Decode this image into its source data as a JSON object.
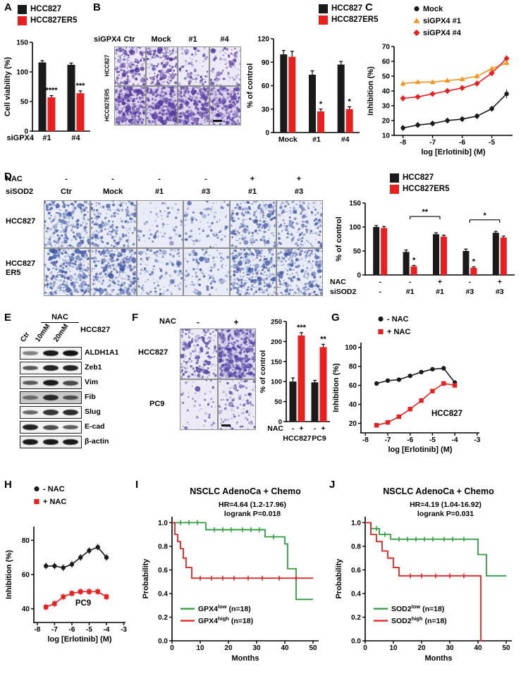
{
  "panelA": {
    "label": "A",
    "legend": [
      {
        "label": "HCC827",
        "color": "#1a1a1a"
      },
      {
        "label": "HCC827ER5",
        "color": "#e8201f"
      }
    ],
    "chart_data": {
      "type": "bar",
      "ylabel": "Cell viability (%)",
      "ylim": [
        0,
        150
      ],
      "yticks": [
        0,
        50,
        100,
        150
      ],
      "xprefix": "siGPX4",
      "categories": [
        "#1",
        "#4"
      ],
      "series": [
        {
          "name": "HCC827",
          "color": "#1a1a1a",
          "values": [
            116,
            112
          ],
          "errors": [
            3,
            3
          ]
        },
        {
          "name": "HCC827ER5",
          "color": "#e8201f",
          "values": [
            57,
            64
          ],
          "errors": [
            3,
            4
          ]
        }
      ],
      "annotations": [
        {
          "group": 0,
          "series": 1,
          "text": "****"
        },
        {
          "group": 1,
          "series": 1,
          "text": "***"
        }
      ]
    }
  },
  "panelB": {
    "label": "B",
    "grid": {
      "corner_label": "siGPX4",
      "col_labels": [
        "Ctr",
        "Mock",
        "#1",
        "#4"
      ],
      "row_labels": [
        "HCC827",
        "HCC827ER5"
      ],
      "densities": [
        [
          0.72,
          0.68,
          0.33,
          0.38
        ],
        [
          0.95,
          0.93,
          0.85,
          0.8
        ]
      ],
      "dot_color": "#53379c",
      "bg": "#ede9f6"
    },
    "legend": [
      {
        "label": "HCC827",
        "color": "#1a1a1a"
      },
      {
        "label": "HCC827ER5",
        "color": "#e8201f"
      }
    ],
    "chart_data": {
      "type": "bar",
      "ylabel": "% of control",
      "ylim": [
        0,
        120
      ],
      "yticks": [
        0,
        30,
        60,
        90,
        120
      ],
      "categories": [
        "Mock",
        "#1",
        "#4"
      ],
      "series": [
        {
          "name": "HCC827",
          "color": "#1a1a1a",
          "values": [
            100,
            74,
            87
          ],
          "errors": [
            5,
            5,
            4
          ]
        },
        {
          "name": "HCC827ER5",
          "color": "#e8201f",
          "values": [
            97,
            27,
            30
          ],
          "errors": [
            7,
            3,
            3
          ]
        }
      ],
      "annotations": [
        {
          "group": 1,
          "series": 1,
          "text": "*"
        },
        {
          "group": 2,
          "series": 1,
          "text": "*"
        }
      ]
    }
  },
  "panelC": {
    "label": "C",
    "chart_data": {
      "type": "line",
      "ylabel": "Inhibition (%)",
      "xlabel": "log [Erlotinib] (M)",
      "ylim": [
        10,
        70
      ],
      "yticks": [
        10,
        20,
        30,
        40,
        50,
        60,
        70
      ],
      "xlim": [
        -8.3,
        -4.3
      ],
      "xticks": [
        -8,
        -7,
        -6,
        -5
      ],
      "series": [
        {
          "name": "Mock",
          "color": "#1a1a1a",
          "marker": "circle",
          "x": [
            -8,
            -7.5,
            -7,
            -6.5,
            -6,
            -5.5,
            -5,
            -4.5
          ],
          "y": [
            15,
            17,
            18,
            20,
            21,
            23,
            28,
            38
          ],
          "yerr": [
            2,
            2,
            2,
            2,
            2,
            2,
            2,
            3
          ]
        },
        {
          "name": "siGPX4 #1",
          "color": "#f59420",
          "marker": "triangle",
          "x": [
            -8,
            -7.5,
            -7,
            -6.5,
            -6,
            -5.5,
            -5,
            -4.5
          ],
          "y": [
            45,
            46,
            46,
            47,
            48,
            50,
            55,
            59
          ],
          "yerr": [
            2,
            1,
            1,
            1,
            1,
            2,
            2,
            2
          ]
        },
        {
          "name": "siGPX4 #4",
          "color": "#e8201f",
          "marker": "diamond",
          "x": [
            -8,
            -7.5,
            -7,
            -6.5,
            -6,
            -5.5,
            -5,
            -4.5
          ],
          "y": [
            35,
            36,
            38,
            40,
            42,
            45,
            52,
            62
          ],
          "yerr": [
            2,
            1,
            1,
            1,
            2,
            2,
            2,
            2
          ]
        }
      ]
    }
  },
  "panelD": {
    "label": "D",
    "grid": {
      "header_rows": [
        {
          "label": "NAC",
          "values": [
            "-",
            "-",
            "-",
            "-",
            "+",
            "+"
          ]
        },
        {
          "label": "siSOD2",
          "values": [
            "Ctr",
            "Mock",
            "#1",
            "#3",
            "#1",
            "#3"
          ]
        }
      ],
      "row_labels": [
        [
          "HCC827"
        ],
        [
          "HCC827",
          "ER5"
        ]
      ],
      "densities": [
        [
          0.5,
          0.45,
          0.17,
          0.2,
          0.45,
          0.4
        ],
        [
          0.68,
          0.63,
          0.3,
          0.25,
          0.6,
          0.55
        ]
      ],
      "dot_color": "#3d55a3",
      "bg": "#e9ecf6"
    },
    "legend": [
      {
        "label": "HCC827",
        "color": "#1a1a1a"
      },
      {
        "label": "HCC827ER5",
        "color": "#e8201f"
      }
    ],
    "chart_data": {
      "type": "bar",
      "ylabel": "% of control",
      "ylim": [
        0,
        150
      ],
      "yticks": [
        0,
        50,
        100,
        150
      ],
      "categories": [
        "",
        "",
        "",
        "",
        ""
      ],
      "series": [
        {
          "name": "HCC827",
          "color": "#1a1a1a",
          "values": [
            100,
            48,
            85,
            50,
            88
          ],
          "errors": [
            3,
            4,
            3,
            4,
            3
          ]
        },
        {
          "name": "HCC827ER5",
          "color": "#e8201f",
          "values": [
            98,
            18,
            80,
            15,
            78
          ],
          "errors": [
            3,
            2,
            3,
            2,
            3
          ]
        }
      ],
      "annotations": [
        {
          "group": 1,
          "series": 1,
          "text": "*"
        },
        {
          "group": 3,
          "series": 1,
          "text": "*"
        }
      ],
      "brackets": [
        {
          "from": 1,
          "to": 2,
          "y": 122,
          "text": "**"
        },
        {
          "from": 3,
          "to": 4,
          "y": 115,
          "text": "*"
        }
      ],
      "xrows": [
        {
          "label": "NAC",
          "values": [
            "-",
            "-",
            "+",
            "-",
            "+"
          ]
        },
        {
          "label": "siSOD2",
          "values": [
            "-",
            "#1",
            "#1",
            "#3",
            "#3"
          ]
        }
      ]
    }
  },
  "panelE": {
    "label": "E",
    "treatment_label": "NAC",
    "cell_line": "HCC827",
    "lane_labels": [
      "Ctr",
      "10mM",
      "20mM"
    ],
    "blot_rows": [
      {
        "label": "ALDH1A1",
        "bg": "#f3f3f3",
        "bands": [
          0.3,
          0.9,
          0.95
        ]
      },
      {
        "label": "Zeb1",
        "bg": "#f3f3f3",
        "bands": [
          0.55,
          0.85,
          0.85
        ]
      },
      {
        "label": "Vim",
        "bg": "#e8e8e8",
        "bands": [
          0.5,
          0.9,
          0.6
        ]
      },
      {
        "label": "Fib",
        "bg": "#c8c8c8",
        "bands": [
          0.35,
          0.8,
          0.55
        ]
      },
      {
        "label": "Slug",
        "bg": "#f3f3f3",
        "bands": [
          0.45,
          0.75,
          0.8
        ]
      },
      {
        "label": "E-cad",
        "bg": "#f3f3f3",
        "bands": [
          0.85,
          0.6,
          0.5
        ]
      },
      {
        "label": "β-actin",
        "bg": "#efefef",
        "bands": [
          0.9,
          0.9,
          0.9
        ]
      }
    ]
  },
  "panelF": {
    "label": "F",
    "grid": {
      "corner_label": "NAC",
      "col_labels": [
        "-",
        "+"
      ],
      "row_labels": [
        "HCC827",
        "PC9"
      ],
      "densities": [
        [
          0.5,
          0.85
        ],
        [
          0.14,
          0.3
        ]
      ],
      "dot_color": "#4a3da0",
      "bg": "#edeaf6"
    },
    "chart_data": {
      "type": "bar",
      "ylabel": "% of control",
      "ylim": [
        0,
        250
      ],
      "yticks": [
        0,
        50,
        100,
        150,
        200,
        250
      ],
      "categories": [
        "",
        ""
      ],
      "series": [
        {
          "name": "-NAC",
          "color": "#1a1a1a",
          "values": [
            100,
            98
          ],
          "errors": [
            9,
            5
          ]
        },
        {
          "name": "+NAC",
          "color": "#e8201f",
          "values": [
            215,
            186
          ],
          "errors": [
            7,
            7
          ]
        }
      ],
      "annotations": [
        {
          "group": 0,
          "series": 1,
          "text": "***"
        },
        {
          "group": 1,
          "series": 1,
          "text": "**"
        }
      ],
      "xrows": [
        {
          "label": "NAC",
          "perBar": true,
          "values": [
            "-",
            "+",
            "-",
            "+"
          ]
        }
      ],
      "groupSpans": [
        {
          "from": 0,
          "to": 0,
          "label": "HCC827"
        },
        {
          "from": 1,
          "to": 1,
          "label": "PC9"
        }
      ]
    }
  },
  "panelG": {
    "label": "G",
    "chart_data": {
      "type": "line",
      "ylabel": "Inhibition (%)",
      "xlabel": "log [Erlotinib] (M)",
      "inner_label": "HCC827",
      "ylim": [
        10,
        105
      ],
      "yticks": [
        20,
        40,
        60,
        80,
        100
      ],
      "xlim": [
        -8.2,
        -2.9
      ],
      "xticks": [
        -8,
        -7,
        -6,
        -5,
        -4,
        -3
      ],
      "series": [
        {
          "name": "- NAC",
          "color": "#1a1a1a",
          "marker": "circle",
          "x": [
            -7.5,
            -7,
            -6.5,
            -6,
            -5.5,
            -5,
            -4.5,
            -4
          ],
          "y": [
            62,
            65,
            66,
            70,
            74,
            77,
            78,
            63
          ],
          "yerr": [
            2,
            2,
            2,
            2,
            2,
            2,
            2,
            2
          ]
        },
        {
          "name": "+ NAC",
          "color": "#e8201f",
          "marker": "square",
          "x": [
            -7.5,
            -7,
            -6.5,
            -6,
            -5.5,
            -5,
            -4.5,
            -4
          ],
          "y": [
            18,
            21,
            27,
            35,
            44,
            54,
            62,
            60
          ],
          "yerr": [
            2,
            2,
            2,
            2,
            2,
            2,
            2,
            2
          ]
        }
      ]
    }
  },
  "panelH": {
    "label": "H",
    "chart_data": {
      "type": "line",
      "ylabel": "Inhibition (%)",
      "xlabel": "log [Erlotinib] (M)",
      "inner_label": "PC9",
      "ylim": [
        32,
        88
      ],
      "yticks": [
        40,
        60,
        80
      ],
      "xlim": [
        -8.2,
        -2.9
      ],
      "xticks": [
        -8,
        -7,
        -6,
        -5,
        -4,
        -3
      ],
      "series": [
        {
          "name": "- NAC",
          "color": "#1a1a1a",
          "marker": "circle",
          "x": [
            -7.5,
            -7,
            -6.5,
            -6,
            -5.5,
            -5,
            -4.5,
            -4
          ],
          "y": [
            65,
            65,
            64,
            66,
            70,
            74,
            76,
            70
          ],
          "yerr": [
            2,
            2,
            2,
            2,
            2,
            2,
            2,
            2
          ]
        },
        {
          "name": "+ NAC",
          "color": "#e8201f",
          "marker": "square",
          "x": [
            -7.5,
            -7,
            -6.5,
            -6,
            -5.5,
            -5,
            -4.5,
            -4
          ],
          "y": [
            41,
            43,
            47,
            49,
            50,
            50,
            50,
            47
          ],
          "yerr": [
            2,
            2,
            2,
            2,
            2,
            2,
            2,
            2
          ]
        }
      ]
    }
  },
  "panelI": {
    "label": "I",
    "chart_data": {
      "type": "km",
      "title": "NSCLC AdenoCa + Chemo",
      "hr_text": "HR=4.64 (1.2-17.96)",
      "logrank_text": "logrank P=0.018",
      "ylabel": "Probability",
      "xlabel": "Months",
      "ylim": [
        0,
        1.05
      ],
      "yticks": [
        "0.0",
        "0.2",
        "0.4",
        "0.6",
        "0.8",
        "1.0"
      ],
      "xlim": [
        0,
        52
      ],
      "xticks": [
        0,
        10,
        20,
        30,
        40,
        50
      ],
      "series": [
        {
          "name": {
            "main": "GPX4",
            "sup": "low",
            "rest": " (n=18)"
          },
          "color": "#2f9e3f",
          "steps": [
            [
              12,
              0.94
            ],
            [
              33,
              0.88
            ],
            [
              40,
              0.82
            ],
            [
              41,
              0.61
            ],
            [
              44,
              0.35
            ]
          ],
          "end": 50,
          "censors": [
            [
              3,
              1.0
            ],
            [
              6,
              1.0
            ],
            [
              9,
              1.0
            ],
            [
              15,
              0.94
            ],
            [
              18,
              0.94
            ],
            [
              21,
              0.94
            ],
            [
              25,
              0.94
            ],
            [
              28,
              0.94
            ],
            [
              31,
              0.94
            ],
            [
              36,
              0.88
            ]
          ]
        },
        {
          "name": {
            "main": "GPX4",
            "sup": "high",
            "rest": " (n=18)"
          },
          "color": "#e8201f",
          "steps": [
            [
              1,
              0.9
            ],
            [
              2,
              0.84
            ],
            [
              3,
              0.78
            ],
            [
              4,
              0.7
            ],
            [
              5,
              0.62
            ],
            [
              7,
              0.53
            ]
          ],
          "end": 50,
          "censors": [
            [
              10,
              0.53
            ],
            [
              14,
              0.53
            ],
            [
              18,
              0.53
            ],
            [
              22,
              0.53
            ],
            [
              27,
              0.53
            ],
            [
              32,
              0.53
            ],
            [
              38,
              0.53
            ],
            [
              44,
              0.53
            ]
          ]
        }
      ]
    }
  },
  "panelJ": {
    "label": "J",
    "chart_data": {
      "type": "km",
      "title": "NSCLC AdenoCa + Chemo",
      "hr_text": "HR=4.19 (1.04-16.92)",
      "logrank_text": "logrank P=0.031",
      "ylabel": "Probability",
      "xlabel": "Months",
      "ylim": [
        0,
        1.05
      ],
      "yticks": [
        "0.0",
        "0.2",
        "0.4",
        "0.6",
        "0.8",
        "1.0"
      ],
      "xlim": [
        0,
        52
      ],
      "xticks": [
        0,
        10,
        20,
        30,
        40,
        50
      ],
      "series": [
        {
          "name": {
            "main": "SOD2",
            "sup": "low",
            "rest": " (n=18)"
          },
          "color": "#2f9e3f",
          "steps": [
            [
              2,
              0.95
            ],
            [
              5,
              0.9
            ],
            [
              9,
              0.86
            ],
            [
              40,
              0.73
            ],
            [
              43,
              0.55
            ]
          ],
          "end": 50,
          "censors": [
            [
              4,
              0.95
            ],
            [
              7,
              0.9
            ],
            [
              12,
              0.86
            ],
            [
              15,
              0.86
            ],
            [
              18,
              0.86
            ],
            [
              21,
              0.86
            ],
            [
              24,
              0.86
            ],
            [
              28,
              0.86
            ],
            [
              31,
              0.86
            ],
            [
              35,
              0.86
            ]
          ]
        },
        {
          "name": {
            "main": "SOD2",
            "sup": "high",
            "rest": " (n=18)"
          },
          "color": "#e8201f",
          "steps": [
            [
              2,
              0.9
            ],
            [
              4,
              0.84
            ],
            [
              6,
              0.76
            ],
            [
              8,
              0.7
            ],
            [
              10,
              0.62
            ],
            [
              12,
              0.55
            ],
            [
              41,
              0.0
            ]
          ],
          "end": 41.5,
          "censors": [
            [
              16,
              0.55
            ],
            [
              20,
              0.55
            ],
            [
              25,
              0.55
            ],
            [
              30,
              0.55
            ],
            [
              35,
              0.55
            ]
          ]
        }
      ]
    }
  }
}
